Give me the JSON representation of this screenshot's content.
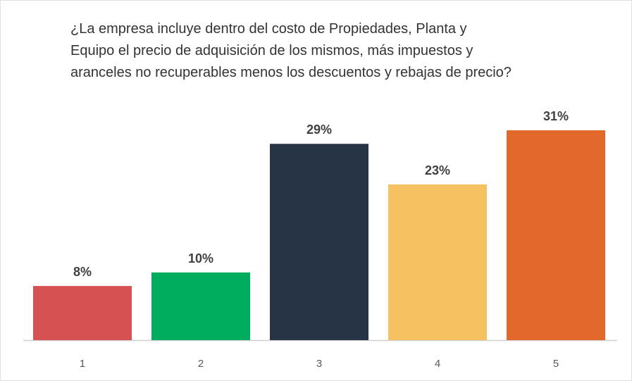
{
  "chart_data": {
    "type": "bar",
    "title": "¿La empresa incluye dentro del costo de Propiedades, Planta y\nEquipo el precio de adquisición de los mismos, más impuestos y\naranceles no recuperables menos los descuentos y rebajas de precio?",
    "categories": [
      "1",
      "2",
      "3",
      "4",
      "5"
    ],
    "values": [
      8,
      10,
      29,
      23,
      31
    ],
    "value_labels": [
      "8%",
      "10%",
      "29%",
      "23%",
      "31%"
    ],
    "colors": [
      "#d65151",
      "#00ad5f",
      "#263446",
      "#f6c161",
      "#e2692b"
    ]
  }
}
